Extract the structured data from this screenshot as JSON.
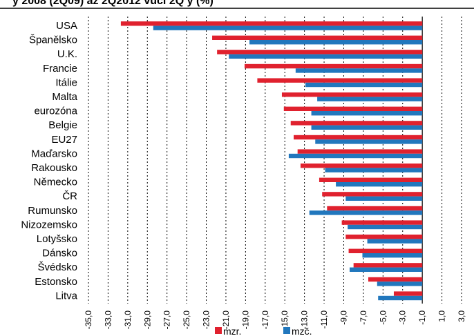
{
  "chart_data": {
    "type": "bar",
    "orientation": "horizontal",
    "title": "y 2008 (2Q09) až 2Q2012 vůči 2Q y (%)",
    "categories": [
      "USA",
      "Španělsko",
      "U.K.",
      "Francie",
      "Itálie",
      "Malta",
      "eurozóna",
      "Belgie",
      "EU27",
      "Maďarsko",
      "Rakousko",
      "Německo",
      "ČR",
      "Rumunsko",
      "Nizozemsko",
      "Lotyšsko",
      "Dánsko",
      "Švédsko",
      "Estonsko",
      "Litva"
    ],
    "series": [
      {
        "name": "mzr.",
        "color": "#e0212e",
        "values": [
          -31.7,
          -22.4,
          -21.9,
          -19.1,
          -17.8,
          -15.3,
          -15.1,
          -14.4,
          -14.1,
          -13.7,
          -13.4,
          -11.5,
          -11.2,
          -10.7,
          -9.2,
          -8.8,
          -8.5,
          -8.0,
          -6.5,
          -3.9
        ]
      },
      {
        "name": "mzč.",
        "color": "#2177bd",
        "values": [
          -28.4,
          -18.6,
          -20.7,
          -13.9,
          -12.9,
          -11.7,
          -12.3,
          -12.3,
          -11.9,
          -14.6,
          -10.9,
          -9.8,
          -8.8,
          -12.5,
          -8.6,
          -6.6,
          -7.1,
          -8.4,
          -5.6,
          -5.5
        ]
      }
    ],
    "xlim": [
      -35,
      3
    ],
    "ticks": [
      "-35,0",
      "-33,0",
      "-31,0",
      "-29,0",
      "-27,0",
      "-25,0",
      "-23,0",
      "-21,0",
      "-19,0",
      "-17,0",
      "-15,0",
      "-13,0",
      "-11,0",
      "-9,0",
      "-7,0",
      "-5,0",
      "-3,0",
      "-1,0",
      "1,0",
      "3,0"
    ],
    "tick_values": [
      -35,
      -33,
      -31,
      -29,
      -27,
      -25,
      -23,
      -21,
      -19,
      -17,
      -15,
      -13,
      -11,
      -9,
      -7,
      -5,
      -3,
      -1,
      1,
      3
    ],
    "grid": true,
    "legend_position": "bottom"
  }
}
